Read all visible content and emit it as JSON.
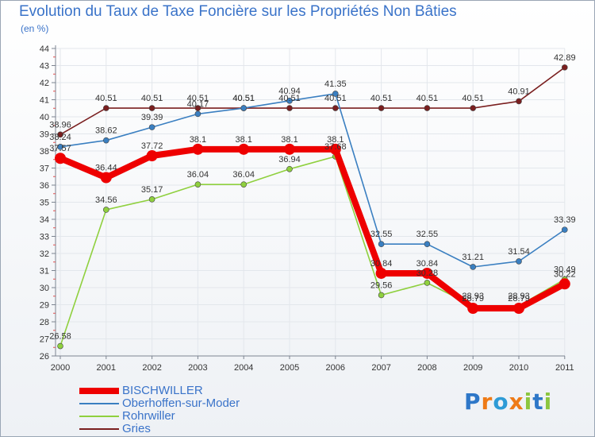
{
  "chart_data": {
    "type": "line",
    "title": "Evolution du Taux de Taxe Foncière sur les Propriétés Non Bâties",
    "ylabel": "(en %)",
    "xlabel": "",
    "ylim": [
      26,
      44
    ],
    "yticks": [
      26,
      27,
      28,
      29,
      30,
      31,
      32,
      33,
      34,
      35,
      36,
      37,
      38,
      39,
      40,
      41,
      42,
      43,
      44
    ],
    "categories": [
      "2000",
      "2001",
      "2002",
      "2003",
      "2004",
      "2005",
      "2006",
      "2007",
      "2008",
      "2009",
      "2010",
      "2011"
    ],
    "series": [
      {
        "name": "BISCHWILLER",
        "color": "#ee0000",
        "values": [
          37.57,
          36.44,
          37.72,
          38.1,
          38.1,
          38.1,
          38.1,
          30.84,
          30.84,
          28.79,
          28.79,
          30.22
        ],
        "labels": [
          "37.57",
          "36.44",
          "37.72",
          "38.1",
          "38.1",
          "38.1",
          "38.1",
          "30.84",
          "30.84",
          "28.79",
          "28.79",
          "30.22"
        ]
      },
      {
        "name": "Oberhoffen-sur-Moder",
        "color": "#3a7fc1",
        "values": [
          38.24,
          38.62,
          39.39,
          40.17,
          40.51,
          40.94,
          41.35,
          32.55,
          32.55,
          31.21,
          31.54,
          33.39
        ],
        "labels": [
          "38.24",
          "38.62",
          "39.39",
          "40.17",
          "40.51",
          "40.94",
          "41.35",
          "32.55",
          "32.55",
          "31.21",
          "31.54",
          "33.39"
        ]
      },
      {
        "name": "Rohrwiller",
        "color": "#8fd03e",
        "values": [
          26.58,
          34.56,
          35.17,
          36.04,
          36.04,
          36.94,
          37.68,
          29.56,
          30.28,
          28.93,
          28.93,
          30.49
        ],
        "labels": [
          "26.58",
          "34.56",
          "35.17",
          "36.04",
          "36.04",
          "36.94",
          "37.68",
          "29.56",
          "30.28",
          "28.93",
          "28.93",
          "30.49"
        ]
      },
      {
        "name": "Gries",
        "color": "#7a1f1f",
        "values": [
          38.96,
          40.51,
          40.51,
          40.51,
          40.51,
          40.51,
          40.51,
          40.51,
          40.51,
          40.51,
          40.91,
          42.89
        ],
        "labels": [
          "38.96",
          "40.51",
          "40.51",
          "40.51",
          "40.51",
          "40.51",
          "40.51",
          "40.51",
          "40.51",
          "40.51",
          "40.91",
          "42.89"
        ]
      }
    ]
  },
  "logo": {
    "text": "Proxiti",
    "letters": [
      "P",
      "r",
      "o",
      "x",
      "i",
      "t",
      "i"
    ],
    "colors": [
      "#2e77c8",
      "#ee7a16",
      "#2e9bd6",
      "#ee7a16",
      "#8cc63f",
      "#2e77c8",
      "#8cc63f"
    ]
  }
}
